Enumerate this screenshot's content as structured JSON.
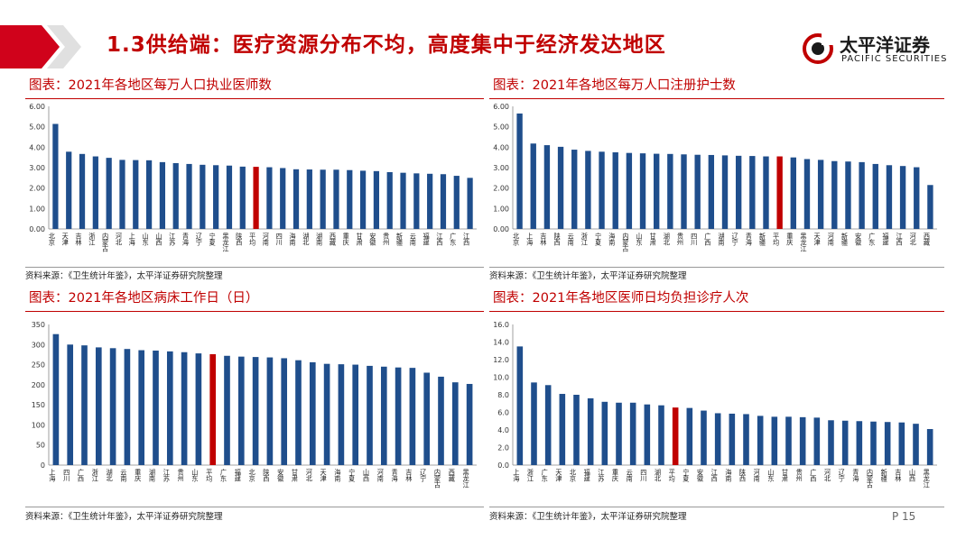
{
  "header": {
    "title": "1.3供给端：医疗资源分布不均，高度集中于经济发达地区",
    "logo_cn": "太平洋证券",
    "logo_en": "PACIFIC SECURITIES"
  },
  "footer": {
    "page": "P 15"
  },
  "colors": {
    "bar": "#1f4e8c",
    "highlight": "#c00000",
    "accent": "#c00000"
  },
  "panels": [
    {
      "title": "图表：2021年各地区每万人口执业医师数",
      "source": "资料来源：《卫生统计年鉴》，太平洋证券研究院整理"
    },
    {
      "title": "图表：2021年各地区每万人口注册护士数",
      "source": "资料来源：《卫生统计年鉴》，太平洋证券研究院整理"
    },
    {
      "title": "图表：2021年各地区病床工作日（日）",
      "source": "资料来源：《卫生统计年鉴》，太平洋证券研究院整理"
    },
    {
      "title": "图表：2021年各地区医师日均负担诊疗人次",
      "source": "资料来源：《卫生统计年鉴》，太平洋证券研究院整理"
    }
  ],
  "chart_data": [
    {
      "type": "bar",
      "title": "图表：2021年各地区每万人口执业医师数",
      "categories": [
        "北京",
        "天津",
        "吉林",
        "浙江",
        "内蒙古",
        "河北",
        "上海",
        "山东",
        "山西",
        "江苏",
        "青海",
        "辽宁",
        "宁夏",
        "黑龙江",
        "陕西",
        "平均",
        "河南",
        "四川",
        "海南",
        "湖北",
        "湖南",
        "西藏",
        "重庆",
        "甘肃",
        "安徽",
        "贵州",
        "新疆",
        "云南",
        "福建",
        "江西",
        "广东",
        "江西"
      ],
      "values": [
        5.14,
        3.78,
        3.67,
        3.55,
        3.48,
        3.38,
        3.37,
        3.36,
        3.27,
        3.22,
        3.18,
        3.14,
        3.12,
        3.1,
        3.05,
        3.04,
        3.02,
        2.98,
        2.92,
        2.91,
        2.9,
        2.9,
        2.88,
        2.85,
        2.83,
        2.78,
        2.75,
        2.72,
        2.7,
        2.68,
        2.6,
        2.5
      ],
      "highlight_category": "平均",
      "ylim": [
        0,
        6
      ],
      "yticks": [
        "0.00",
        "1.00",
        "2.00",
        "3.00",
        "4.00",
        "5.00",
        "6.00"
      ]
    },
    {
      "type": "bar",
      "title": "图表：2021年各地区每万人口注册护士数",
      "categories": [
        "北京",
        "上海",
        "吉林",
        "陕西",
        "云南",
        "浙江",
        "宁夏",
        "海南",
        "内蒙古",
        "山东",
        "甘肃",
        "湖北",
        "贵州",
        "四川",
        "广西",
        "湖南",
        "辽宁",
        "青海",
        "新疆",
        "平均",
        "重庆",
        "黑龙江",
        "天津",
        "河南",
        "新疆",
        "安徽",
        "广东",
        "福建",
        "江西",
        "河北",
        "西藏"
      ],
      "values": [
        5.65,
        4.18,
        4.1,
        4.02,
        3.88,
        3.82,
        3.78,
        3.75,
        3.72,
        3.7,
        3.68,
        3.67,
        3.65,
        3.63,
        3.62,
        3.6,
        3.58,
        3.57,
        3.55,
        3.55,
        3.5,
        3.42,
        3.38,
        3.32,
        3.3,
        3.27,
        3.18,
        3.12,
        3.08,
        3.02,
        2.15
      ],
      "highlight_category": "平均",
      "ylim": [
        0,
        6
      ],
      "yticks": [
        "0.00",
        "1.00",
        "2.00",
        "3.00",
        "4.00",
        "5.00",
        "6.00"
      ]
    },
    {
      "type": "bar",
      "title": "图表：2021年各地区病床工作日（日）",
      "categories": [
        "上海",
        "四川",
        "广西",
        "浙江",
        "湖北",
        "云南",
        "重庆",
        "湖南",
        "江苏",
        "贵州",
        "山东",
        "平均",
        "广东",
        "福建",
        "北京",
        "陕西",
        "安徽",
        "甘肃",
        "河北",
        "天津",
        "海南",
        "宁夏",
        "山西",
        "河南",
        "青海",
        "吉林",
        "辽宁",
        "内蒙古",
        "西藏",
        "黑龙江"
      ],
      "values": [
        326,
        300,
        298,
        293,
        291,
        289,
        286,
        285,
        283,
        281,
        278,
        276,
        272,
        270,
        269,
        268,
        266,
        261,
        256,
        252,
        251,
        250,
        247,
        245,
        243,
        242,
        230,
        220,
        206,
        202
      ],
      "highlight_category": "平均",
      "ylim": [
        0,
        350
      ],
      "yticks": [
        "0",
        "50",
        "100",
        "150",
        "200",
        "250",
        "300",
        "350"
      ]
    },
    {
      "type": "bar",
      "title": "图表：2021年各地区医师日均负担诊疗人次",
      "categories": [
        "上海",
        "浙江",
        "广东",
        "天津",
        "北京",
        "福建",
        "江苏",
        "重庆",
        "云南",
        "四川",
        "湖北",
        "平均",
        "宁夏",
        "安徽",
        "江西",
        "海南",
        "陕西",
        "河南",
        "山东",
        "甘肃",
        "贵州",
        "广西",
        "河北",
        "辽宁",
        "青海",
        "内蒙古",
        "新疆",
        "吉林",
        "山西",
        "黑龙江"
      ],
      "values": [
        13.5,
        9.4,
        9.1,
        8.1,
        8.0,
        7.6,
        7.2,
        7.1,
        7.1,
        6.9,
        6.8,
        6.55,
        6.5,
        6.2,
        5.9,
        5.85,
        5.8,
        5.6,
        5.5,
        5.5,
        5.45,
        5.4,
        5.1,
        5.05,
        5.0,
        4.95,
        4.9,
        4.85,
        4.7,
        4.1
      ],
      "highlight_category": "平均",
      "ylim": [
        0,
        16
      ],
      "yticks": [
        "0.0",
        "2.0",
        "4.0",
        "6.0",
        "8.0",
        "10.0",
        "12.0",
        "14.0",
        "16.0"
      ]
    }
  ]
}
